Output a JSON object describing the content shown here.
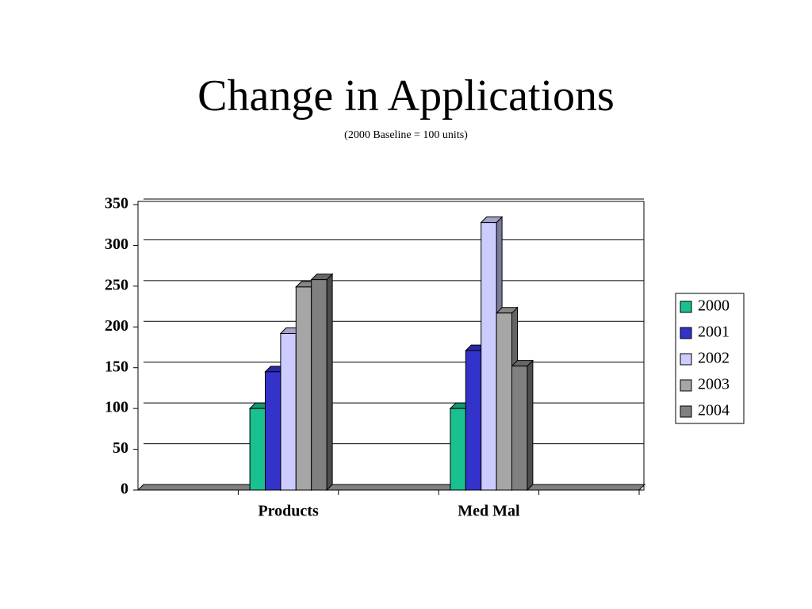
{
  "chart_data": {
    "type": "bar3d",
    "title": "Change in Applications",
    "subtitle": "(2000 Baseline = 100 units)",
    "categories": [
      null,
      "Products",
      null,
      "Med Mal",
      null
    ],
    "series": [
      {
        "name": "2000",
        "color": "#19c090",
        "values": [
          null,
          100,
          null,
          100,
          null
        ]
      },
      {
        "name": "2001",
        "color": "#3333cc",
        "values": [
          null,
          145,
          null,
          171,
          null
        ]
      },
      {
        "name": "2002",
        "color": "#ccccff",
        "values": [
          null,
          192,
          null,
          328,
          null
        ]
      },
      {
        "name": "2003",
        "color": "#a6a6a6",
        "values": [
          null,
          249,
          null,
          217,
          null
        ]
      },
      {
        "name": "2004",
        "color": "#808080",
        "values": [
          null,
          258,
          null,
          152,
          null
        ]
      }
    ],
    "ylim": [
      0,
      350
    ],
    "yticks": [
      0,
      50,
      100,
      150,
      200,
      250,
      300,
      350
    ],
    "grid": true,
    "legend": "right"
  }
}
